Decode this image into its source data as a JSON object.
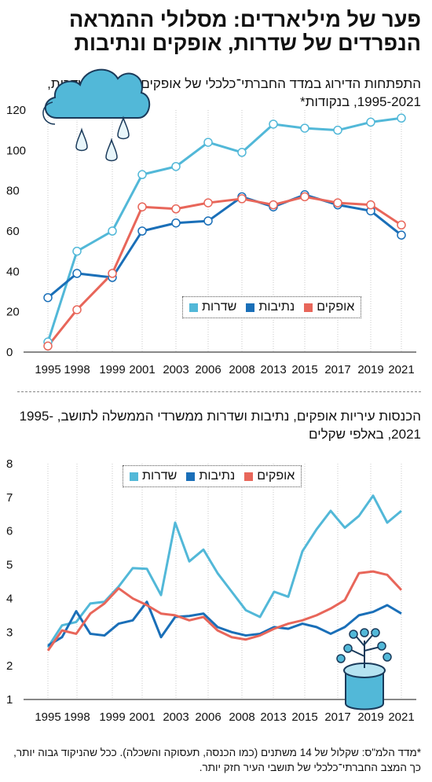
{
  "title": "פער של מיליארדים: מסלולי ההמראה הנפרדים של שדרות, אופקים ונתיבות",
  "legend": [
    {
      "label": "שדרות",
      "color": "#52b8d8"
    },
    {
      "label": "נתיבות",
      "color": "#1a6fb8"
    },
    {
      "label": "אופקים",
      "color": "#e8665a"
    }
  ],
  "footnote": "*מדד הלמ\"ס: שקלול של 14 משתנים (כמו הכנסה, תעסוקה והשכלה). ככל שהניקוד גבוה יותר, כך המצב החברתי־כלכלי של תושבי העיר חזק יותר.",
  "chart_data": [
    {
      "type": "line",
      "title": "התפתחות הדירוג במדד החברתי־כלכלי של אופקים, נתיבות ושדרות, 1995-2021, בנקודות*",
      "x": [
        "1995",
        "1998",
        "1999",
        "2001",
        "2003",
        "2006",
        "2008",
        "2013",
        "2015",
        "2017",
        "2019",
        "2021"
      ],
      "ylim": [
        0,
        120
      ],
      "yticks": [
        0,
        20,
        40,
        60,
        80,
        100,
        120
      ],
      "grid": "vertical",
      "legend_position": "center-right",
      "markers": true,
      "series": [
        {
          "name": "שדרות",
          "color": "#52b8d8",
          "values": [
            5,
            50,
            60,
            88,
            92,
            104,
            99,
            113,
            111,
            110,
            114,
            116
          ]
        },
        {
          "name": "נתיבות",
          "color": "#1a6fb8",
          "values": [
            27,
            39,
            37,
            60,
            64,
            65,
            77,
            72,
            78,
            73,
            70,
            58
          ]
        },
        {
          "name": "אופקים",
          "color": "#e8665a",
          "values": [
            3,
            21,
            39,
            72,
            71,
            74,
            76,
            73,
            77,
            74,
            73,
            63
          ]
        }
      ]
    },
    {
      "type": "line",
      "title": "הכנסות עיריות אופקים, נתיבות ושדרות ממשרדי הממשלה לתושב, 1995-2021, באלפי שקלים",
      "x": [
        "1995",
        "1996",
        "1997",
        "1998",
        "1998.5",
        "1999",
        "1999.5",
        "2000",
        "2001",
        "2002",
        "2003",
        "2004",
        "2005",
        "2006",
        "2007",
        "2008",
        "2009",
        "2013",
        "2014",
        "2015",
        "2016",
        "2017",
        "2018",
        "2019",
        "2020",
        "2021"
      ],
      "xtick_labels": [
        "1995",
        "1998",
        "1999",
        "2001",
        "2003",
        "2006",
        "2008",
        "2013",
        "2015",
        "2017",
        "2019",
        "2021"
      ],
      "ylim": [
        1,
        8
      ],
      "yticks": [
        1,
        2,
        3,
        4,
        5,
        6,
        7,
        8
      ],
      "grid": "vertical",
      "legend_position": "top-center",
      "markers": false,
      "series": [
        {
          "name": "שדרות",
          "color": "#52b8d8",
          "values": [
            2.55,
            3.2,
            3.3,
            3.85,
            3.9,
            4.35,
            4.9,
            4.88,
            4.1,
            6.25,
            5.1,
            5.45,
            4.75,
            4.2,
            3.65,
            3.45,
            4.2,
            4.05,
            5.4,
            6.05,
            6.6,
            6.1,
            6.45,
            7.05,
            6.25,
            6.6
          ]
        },
        {
          "name": "נתיבות",
          "color": "#1a6fb8",
          "values": [
            2.6,
            2.85,
            3.62,
            2.95,
            2.9,
            3.25,
            3.35,
            3.9,
            2.85,
            3.45,
            3.48,
            3.55,
            3.15,
            3.0,
            2.9,
            2.95,
            3.15,
            3.1,
            3.25,
            3.15,
            2.95,
            3.15,
            3.5,
            3.6,
            3.8,
            3.55
          ]
        },
        {
          "name": "אופקים",
          "color": "#e8665a",
          "values": [
            2.45,
            3.05,
            2.95,
            3.55,
            3.85,
            4.3,
            4.0,
            3.8,
            3.55,
            3.5,
            3.35,
            3.45,
            3.05,
            2.85,
            2.78,
            2.9,
            3.1,
            3.25,
            3.35,
            3.5,
            3.7,
            3.95,
            4.75,
            4.8,
            4.7,
            4.25
          ]
        }
      ]
    }
  ]
}
